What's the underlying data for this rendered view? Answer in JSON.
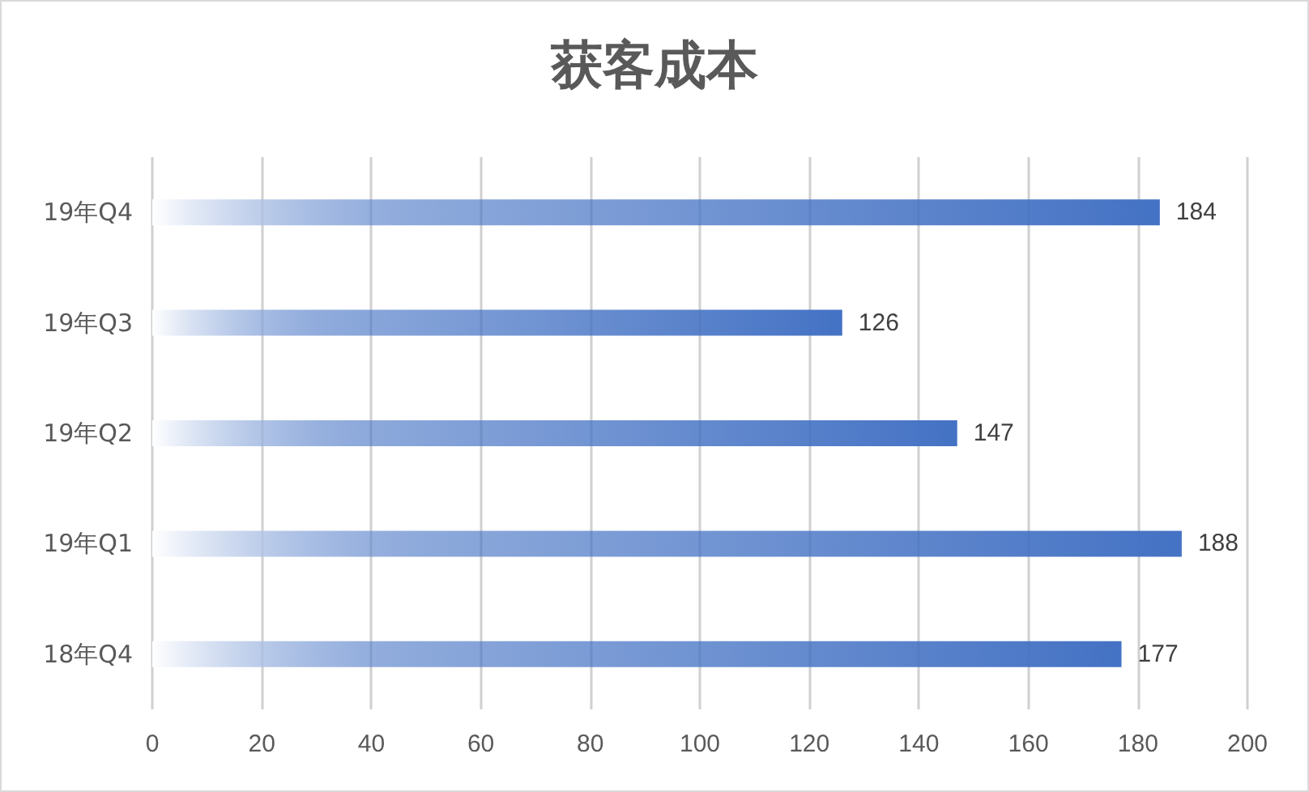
{
  "chart_data": {
    "type": "bar",
    "title": "获客成本",
    "orientation": "horizontal",
    "categories": [
      "19年Q4",
      "19年Q3",
      "19年Q2",
      "19年Q1",
      "18年Q4"
    ],
    "values": [
      184,
      126,
      147,
      188,
      177
    ],
    "color": "#4472c4",
    "xlim": [
      0,
      200
    ],
    "xticks": [
      0,
      20,
      40,
      60,
      80,
      100,
      120,
      140,
      160,
      180,
      200
    ],
    "grid": "x",
    "data_labels": true
  }
}
